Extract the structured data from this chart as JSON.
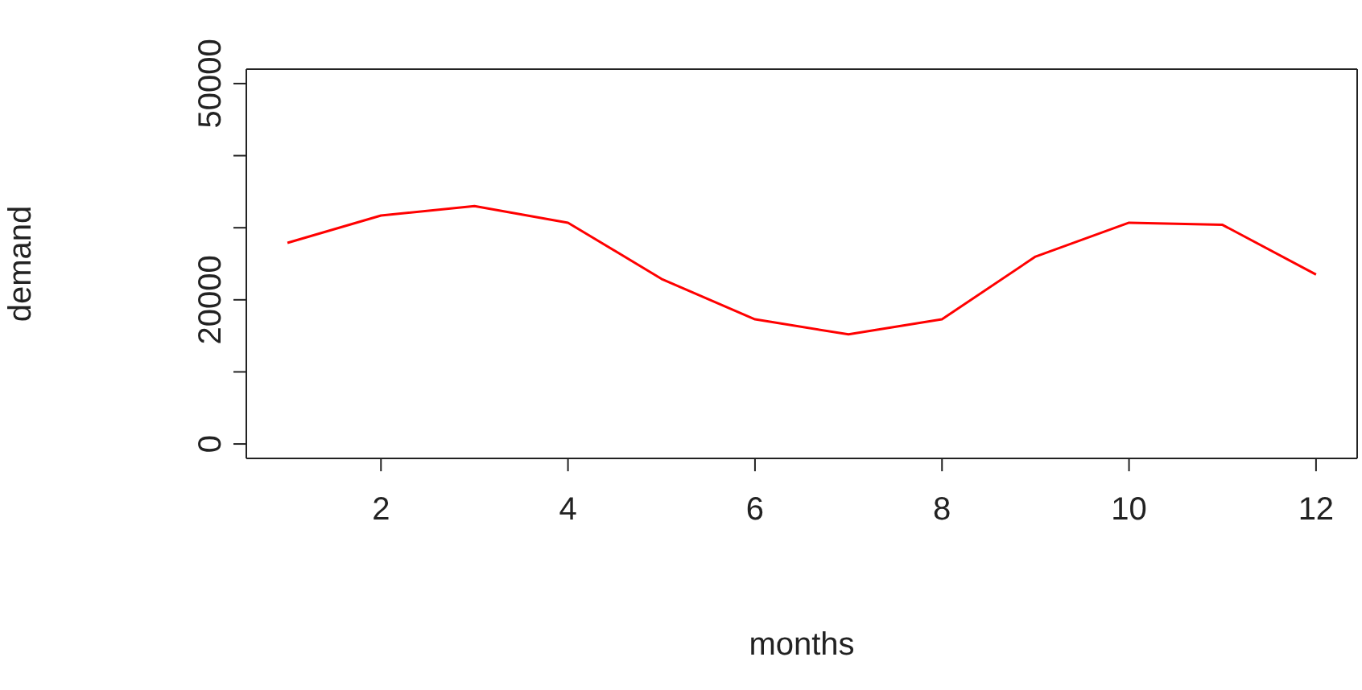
{
  "chart_data": {
    "type": "line",
    "xlabel": "months",
    "ylabel": "demand",
    "x": [
      1,
      2,
      3,
      4,
      5,
      6,
      7,
      8,
      9,
      10,
      11,
      12
    ],
    "series": [
      {
        "color": "#ff0000",
        "values": [
          27900,
          31700,
          33000,
          30700,
          22900,
          17300,
          15200,
          17300,
          26000,
          30700,
          30400,
          23500
        ]
      }
    ],
    "xlim": [
      0.56,
      12.44
    ],
    "xticks": [
      2,
      4,
      6,
      8,
      10,
      12
    ],
    "ylim": [
      -2000,
      52000
    ],
    "yticks": [
      0,
      {
        "value": 10000,
        "label": null
      },
      20000,
      {
        "value": 30000,
        "label": null
      },
      {
        "value": 40000,
        "label": null
      },
      50000
    ],
    "grid": false,
    "legend": false,
    "marker": "none",
    "line_style": "solid"
  }
}
